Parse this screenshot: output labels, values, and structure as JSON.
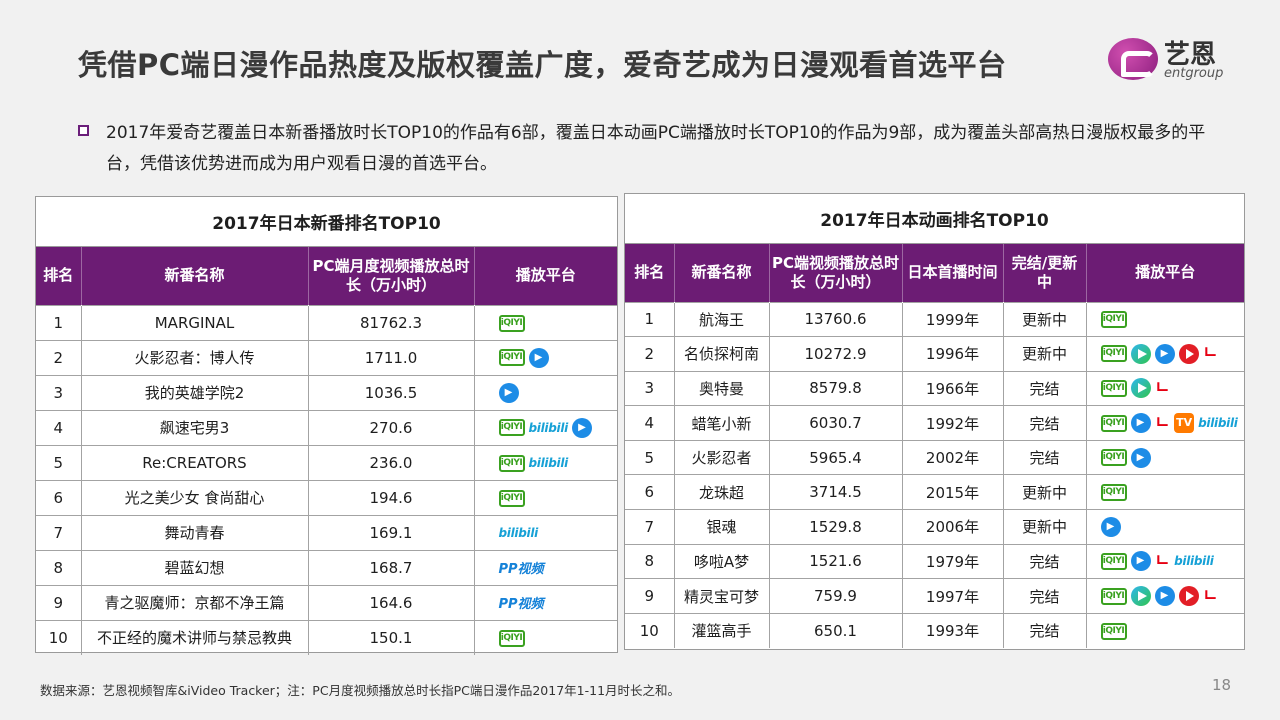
{
  "title": "凭借PC端日漫作品热度及版权覆盖广度，爱奇艺成为日漫观看首选平台",
  "logo": {
    "cn": "艺恩",
    "en": "entgroup"
  },
  "intro": "2017年爱奇艺覆盖日本新番播放时长TOP10的作品有6部，覆盖日本动画PC端播放时长TOP10的作品为9部，成为覆盖头部高热日漫版权最多的平台，凭借该优势进而成为用户观看日漫的首选平台。",
  "icon_labels": {
    "iqiyi": "iQIYI",
    "bilibili": "bilibili",
    "youku": "▶",
    "mango": "TV",
    "pptv": "PP视频",
    "letv": "ㄴ"
  },
  "left_table": {
    "caption": "2017年日本新番排名TOP10",
    "headers": [
      "排名",
      "新番名称",
      "PC端月度视频播放总时长（万小时）",
      "播放平台"
    ],
    "rows": [
      {
        "rank": "1",
        "name": "MARGINAL",
        "value": "81762.3",
        "platforms": [
          "iqiyi"
        ]
      },
      {
        "rank": "2",
        "name": "火影忍者：博人传",
        "value": "1711.0",
        "platforms": [
          "iqiyi",
          "youku"
        ]
      },
      {
        "rank": "3",
        "name": "我的英雄学院2",
        "value": "1036.5",
        "platforms": [
          "youku"
        ]
      },
      {
        "rank": "4",
        "name": "飙速宅男3",
        "value": "270.6",
        "platforms": [
          "iqiyi",
          "bilibili",
          "youku"
        ]
      },
      {
        "rank": "5",
        "name": "Re:CREATORS",
        "value": "236.0",
        "platforms": [
          "iqiyi",
          "bilibili"
        ]
      },
      {
        "rank": "6",
        "name": "光之美少女 食尚甜心",
        "value": "194.6",
        "platforms": [
          "iqiyi"
        ]
      },
      {
        "rank": "7",
        "name": "舞动青春",
        "value": "169.1",
        "platforms": [
          "bilibili"
        ]
      },
      {
        "rank": "8",
        "name": "碧蓝幻想",
        "value": "168.7",
        "platforms": [
          "pptv"
        ]
      },
      {
        "rank": "9",
        "name": "青之驱魔师：京都不净王篇",
        "value": "164.6",
        "platforms": [
          "pptv"
        ]
      },
      {
        "rank": "10",
        "name": "不正经的魔术讲师与禁忌教典",
        "value": "150.1",
        "platforms": [
          "iqiyi"
        ]
      }
    ]
  },
  "right_table": {
    "caption": "2017年日本动画排名TOP10",
    "headers": [
      "排名",
      "新番名称",
      "PC端视频播放总时长（万小时）",
      "日本首播时间",
      "完结/更新中",
      "播放平台"
    ],
    "rows": [
      {
        "rank": "1",
        "name": "航海王",
        "value": "13760.6",
        "year": "1999年",
        "status": "更新中",
        "platforms": [
          "iqiyi"
        ]
      },
      {
        "rank": "2",
        "name": "名侦探柯南",
        "value": "10272.9",
        "year": "1996年",
        "status": "更新中",
        "platforms": [
          "iqiyi",
          "tencent",
          "youku",
          "sohu",
          "letv"
        ]
      },
      {
        "rank": "3",
        "name": "奥特曼",
        "value": "8579.8",
        "year": "1966年",
        "status": "完结",
        "platforms": [
          "iqiyi",
          "tencent",
          "letv"
        ]
      },
      {
        "rank": "4",
        "name": "蜡笔小新",
        "value": "6030.7",
        "year": "1992年",
        "status": "完结",
        "platforms": [
          "iqiyi",
          "youku",
          "letv",
          "mango",
          "bilibili"
        ]
      },
      {
        "rank": "5",
        "name": "火影忍者",
        "value": "5965.4",
        "year": "2002年",
        "status": "完结",
        "platforms": [
          "iqiyi",
          "youku"
        ]
      },
      {
        "rank": "6",
        "name": "龙珠超",
        "value": "3714.5",
        "year": "2015年",
        "status": "更新中",
        "platforms": [
          "iqiyi"
        ]
      },
      {
        "rank": "7",
        "name": "银魂",
        "value": "1529.8",
        "year": "2006年",
        "status": "更新中",
        "platforms": [
          "youku"
        ]
      },
      {
        "rank": "8",
        "name": "哆啦A梦",
        "value": "1521.6",
        "year": "1979年",
        "status": "完结",
        "platforms": [
          "iqiyi",
          "youku",
          "letv",
          "bilibili"
        ]
      },
      {
        "rank": "9",
        "name": "精灵宝可梦",
        "value": "759.9",
        "year": "1997年",
        "status": "完结",
        "platforms": [
          "iqiyi",
          "tencent",
          "youku",
          "sohu",
          "letv"
        ]
      },
      {
        "rank": "10",
        "name": "灌篮高手",
        "value": "650.1",
        "year": "1993年",
        "status": "完结",
        "platforms": [
          "iqiyi"
        ]
      }
    ]
  },
  "footnote": "数据来源：艺恩视频智库&iVideo Tracker；注：PC月度视频播放总时长指PC端日漫作品2017年1-11月时长之和。",
  "page_number": "18"
}
